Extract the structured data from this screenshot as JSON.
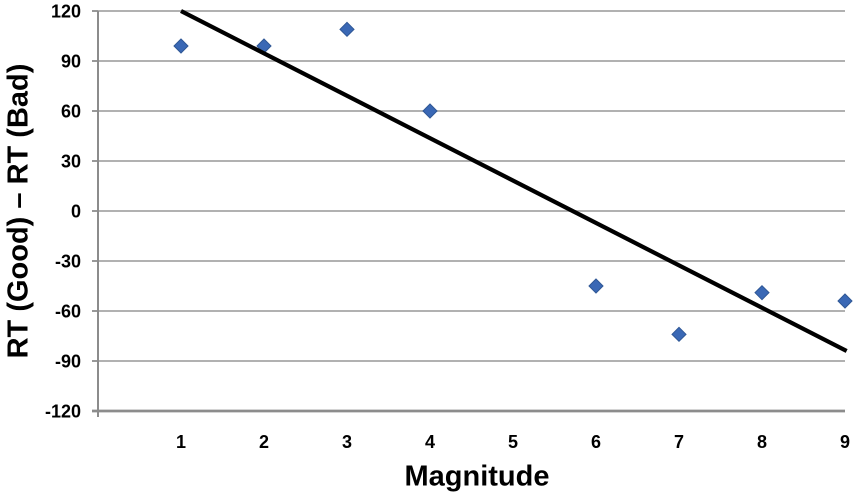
{
  "chart_data": {
    "type": "scatter",
    "title": "",
    "xlabel": "Magnitude",
    "ylabel": "RT (Good) – RT (Bad)",
    "xlim": [
      0,
      9
    ],
    "ylim": [
      -120,
      120
    ],
    "x_ticks": [
      1,
      2,
      3,
      4,
      5,
      6,
      7,
      8,
      9
    ],
    "y_ticks": [
      -120,
      -90,
      -60,
      -30,
      0,
      30,
      60,
      90,
      120
    ],
    "grid": "horizontal-only",
    "legend_position": "none",
    "series": [
      {
        "marker": "diamond",
        "points": [
          {
            "x": 1,
            "y": 99
          },
          {
            "x": 2,
            "y": 99
          },
          {
            "x": 3,
            "y": 109
          },
          {
            "x": 4,
            "y": 60
          },
          {
            "x": 6,
            "y": -45
          },
          {
            "x": 7,
            "y": -74
          },
          {
            "x": 8,
            "y": -49
          },
          {
            "x": 9,
            "y": -54
          }
        ]
      }
    ],
    "trendline": {
      "type": "linear",
      "x1": 1,
      "y1": 120,
      "x2": 9.02,
      "y2": -84
    }
  },
  "colors": {
    "marker_fill": "#3A68B5",
    "marker_edge": "#2F5795",
    "gridline": "#A6A6A6",
    "axis_line": "#8C8C8C",
    "trendline": "#000000",
    "text": "#000000",
    "background": "#FFFFFF"
  }
}
